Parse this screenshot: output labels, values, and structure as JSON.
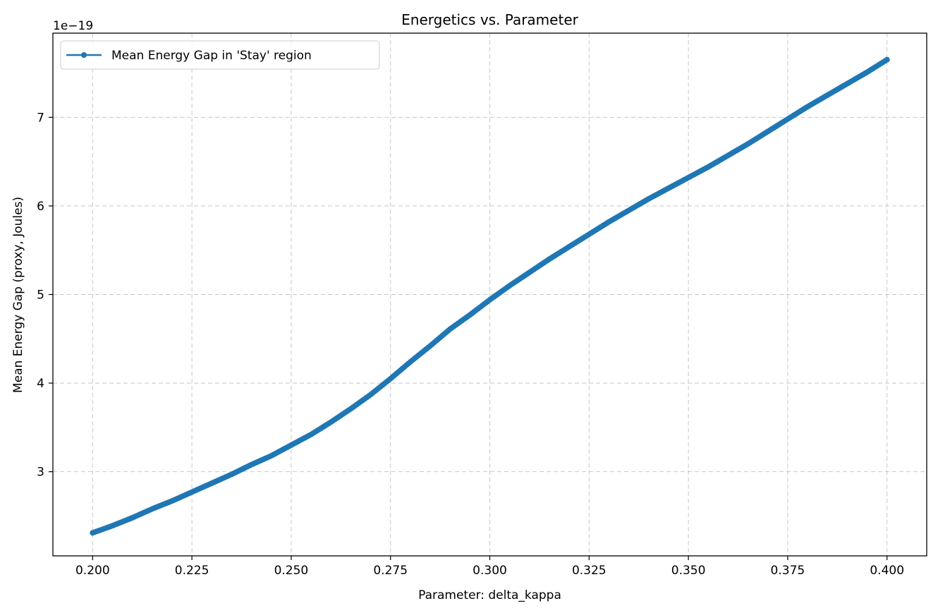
{
  "chart_data": {
    "type": "line",
    "title": "Energetics vs. Parameter",
    "xlabel": "Parameter: delta_kappa",
    "ylabel": "Mean Energy Gap (proxy, Joules)",
    "y_offset_label": "1e−19",
    "xlim": [
      0.19,
      0.41
    ],
    "ylim": [
      2.05,
      7.95
    ],
    "x_ticks": [
      0.2,
      0.225,
      0.25,
      0.275,
      0.3,
      0.325,
      0.35,
      0.375,
      0.4
    ],
    "x_tick_labels": [
      "0.200",
      "0.225",
      "0.250",
      "0.275",
      "0.300",
      "0.325",
      "0.350",
      "0.375",
      "0.400"
    ],
    "y_ticks": [
      3,
      4,
      5,
      6,
      7
    ],
    "y_tick_labels": [
      "3",
      "4",
      "5",
      "6",
      "7"
    ],
    "grid": true,
    "legend_position": "top-left",
    "series": [
      {
        "name": "Mean Energy Gap in 'Stay' region",
        "color": "#1f77b4",
        "marker": "circle",
        "x": [
          0.2,
          0.205,
          0.21,
          0.215,
          0.22,
          0.225,
          0.23,
          0.235,
          0.24,
          0.245,
          0.25,
          0.255,
          0.26,
          0.265,
          0.27,
          0.275,
          0.28,
          0.285,
          0.29,
          0.295,
          0.3,
          0.305,
          0.31,
          0.315,
          0.32,
          0.325,
          0.33,
          0.335,
          0.34,
          0.345,
          0.35,
          0.355,
          0.36,
          0.365,
          0.37,
          0.375,
          0.38,
          0.385,
          0.39,
          0.395,
          0.4
        ],
        "y": [
          2.31,
          2.39,
          2.48,
          2.58,
          2.67,
          2.77,
          2.87,
          2.97,
          3.08,
          3.18,
          3.3,
          3.42,
          3.56,
          3.71,
          3.87,
          4.05,
          4.24,
          4.42,
          4.61,
          4.77,
          4.94,
          5.1,
          5.25,
          5.4,
          5.54,
          5.68,
          5.82,
          5.95,
          6.08,
          6.2,
          6.32,
          6.44,
          6.57,
          6.7,
          6.84,
          6.98,
          7.12,
          7.25,
          7.38,
          7.51,
          7.65
        ]
      }
    ]
  }
}
